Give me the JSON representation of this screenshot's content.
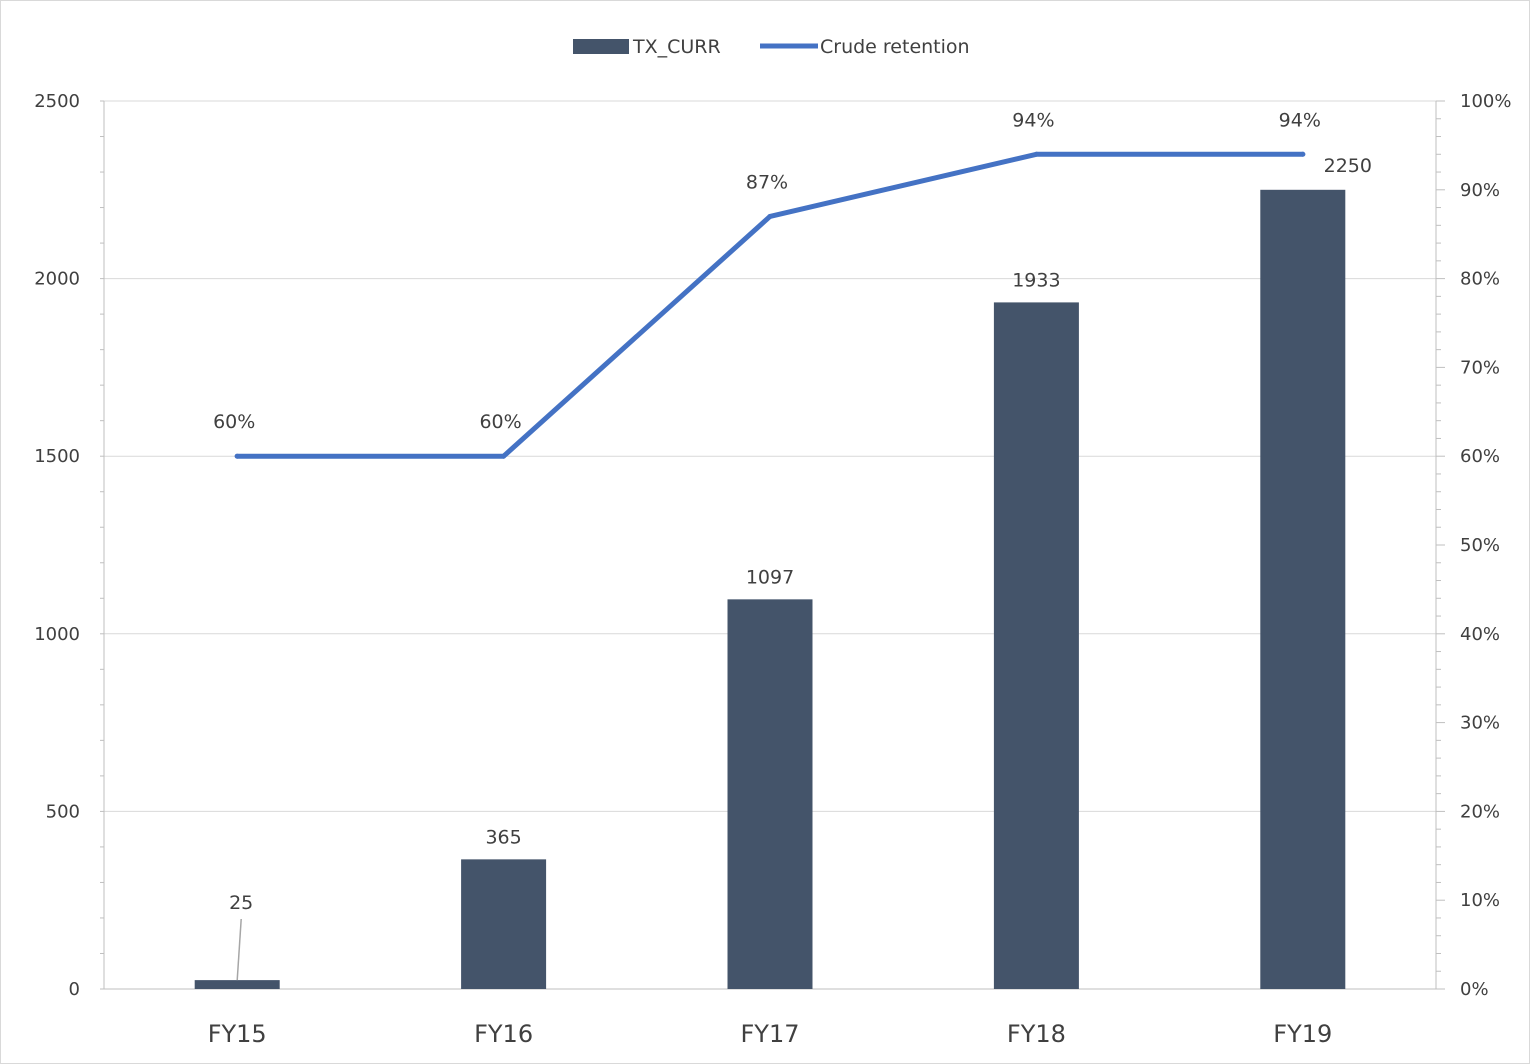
{
  "chart_data": {
    "type": "bar",
    "categories": [
      "FY15",
      "FY16",
      "FY17",
      "FY18",
      "FY19"
    ],
    "series": [
      {
        "name": "TX_CURR",
        "type": "bar",
        "axis": "left",
        "color": "#44546a",
        "values": [
          25,
          365,
          1097,
          1933,
          2250
        ],
        "labels": [
          "25",
          "365",
          "1097",
          "1933",
          "2250"
        ]
      },
      {
        "name": "Crude retention",
        "type": "line",
        "axis": "right",
        "color": "#4472c4",
        "values": [
          60,
          60,
          87,
          94,
          94
        ],
        "labels": [
          "60%",
          "60%",
          "87%",
          "94%",
          "94%"
        ]
      }
    ],
    "y_left": {
      "min": 0,
      "max": 2500,
      "ticks": [
        "0",
        "500",
        "1000",
        "1500",
        "2000",
        "2500"
      ]
    },
    "y_right": {
      "min": 0,
      "max": 100,
      "ticks": [
        "0%",
        "10%",
        "20%",
        "30%",
        "40%",
        "50%",
        "60%",
        "70%",
        "80%",
        "90%",
        "100%"
      ]
    },
    "legend": {
      "position": "top",
      "entries": [
        "TX_CURR",
        "Crude retention"
      ]
    },
    "grid": true
  },
  "colors": {
    "bar": "#44546a",
    "line": "#4472c4",
    "gridline": "#d9d9d9",
    "axis": "#bfbfbf",
    "text": "#404040"
  }
}
